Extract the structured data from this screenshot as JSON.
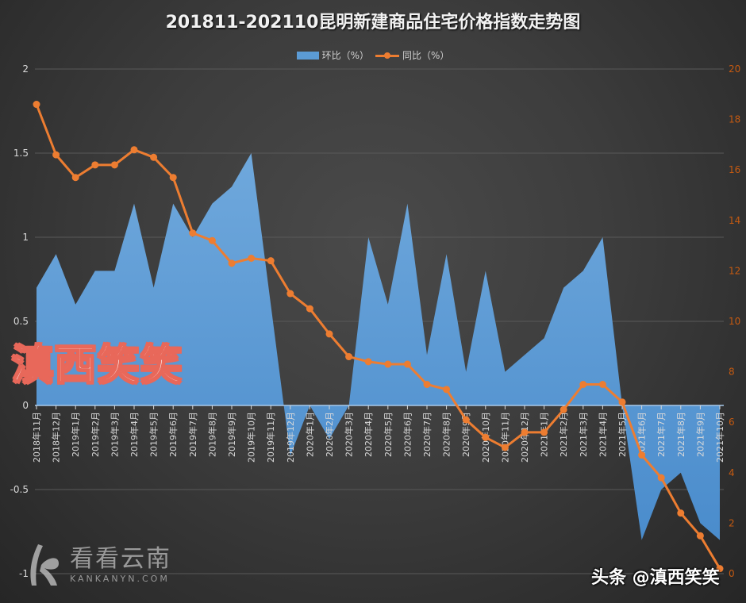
{
  "chart_data": {
    "type": "area+line",
    "title": "201811-202110昆明新建商品住宅价格指数走势图",
    "xlabel": "",
    "ylabel_left": "环比（%）",
    "ylabel_right": "同比（%）",
    "legend_position": "top",
    "grid": true,
    "categories": [
      "2018年11月",
      "2018年12月",
      "2019年1月",
      "2019年2月",
      "2019年3月",
      "2019年4月",
      "2019年5月",
      "2019年6月",
      "2019年7月",
      "2019年8月",
      "2019年9月",
      "2019年10月",
      "2019年11月",
      "2019年12月",
      "2020年1月",
      "2020年2月",
      "2020年3月",
      "2020年4月",
      "2020年5月",
      "2020年6月",
      "2020年7月",
      "2020年8月",
      "2020年9月",
      "2020年10月",
      "2020年11月",
      "2020年12月",
      "2021年1月",
      "2021年2月",
      "2021年3月",
      "2021年4月",
      "2021年5月",
      "2021年6月",
      "2021年7月",
      "2021年8月",
      "2021年9月",
      "2021年10月"
    ],
    "series": [
      {
        "name": "环比（%）",
        "type": "area",
        "axis": "left",
        "color": "#5b9bd5",
        "values": [
          0.7,
          0.9,
          0.6,
          0.8,
          0.8,
          1.2,
          0.7,
          1.2,
          1.0,
          1.2,
          1.3,
          1.5,
          0.6,
          -0.3,
          0.0,
          -0.2,
          0.0,
          1.0,
          0.6,
          1.2,
          0.3,
          0.9,
          0.2,
          0.8,
          0.2,
          0.3,
          0.4,
          0.7,
          0.8,
          1.0,
          0.0,
          -0.8,
          -0.5,
          -0.4,
          -0.7,
          -0.8
        ]
      },
      {
        "name": "同比（%）",
        "type": "line",
        "axis": "right",
        "color": "#ed7d31",
        "values": [
          18.6,
          16.6,
          15.7,
          16.2,
          16.2,
          16.8,
          16.5,
          15.7,
          13.5,
          13.2,
          12.3,
          12.5,
          12.4,
          11.1,
          10.5,
          9.5,
          8.6,
          8.4,
          8.3,
          8.3,
          7.5,
          7.3,
          6.1,
          5.4,
          5.0,
          5.6,
          5.6,
          6.5,
          7.5,
          7.5,
          6.8,
          4.7,
          3.8,
          2.4,
          1.5,
          0.2
        ]
      }
    ],
    "left_axis": {
      "min": -1,
      "max": 2,
      "ticks": [
        2,
        1.5,
        1,
        0.5,
        0,
        -0.5,
        -1
      ],
      "tick_labels": [
        "2",
        "1.5",
        "1",
        "0.5",
        "0",
        "-0.5",
        "-1"
      ]
    },
    "right_axis": {
      "min": 0,
      "max": 20,
      "ticks": [
        20,
        18,
        16,
        14,
        12,
        10,
        8,
        6,
        4,
        2,
        0
      ],
      "tick_labels": [
        "20",
        "18",
        "16",
        "14",
        "12",
        "10",
        "8",
        "6",
        "4",
        "2",
        "0"
      ]
    }
  },
  "legend": {
    "area_label": "环比（%）",
    "line_label": "同比（%）"
  },
  "watermarks": {
    "big_text": "滇西笑笑",
    "logo_cn": "看看云南",
    "logo_en": "KANKANYN.COM",
    "toutiao": "头条 @滇西笑笑"
  },
  "colors": {
    "area": "#5b9bd5",
    "line": "#ed7d31",
    "axis_text": "#d9d9d9",
    "right_axis_text": "#c55a11",
    "grid": "#595959"
  }
}
